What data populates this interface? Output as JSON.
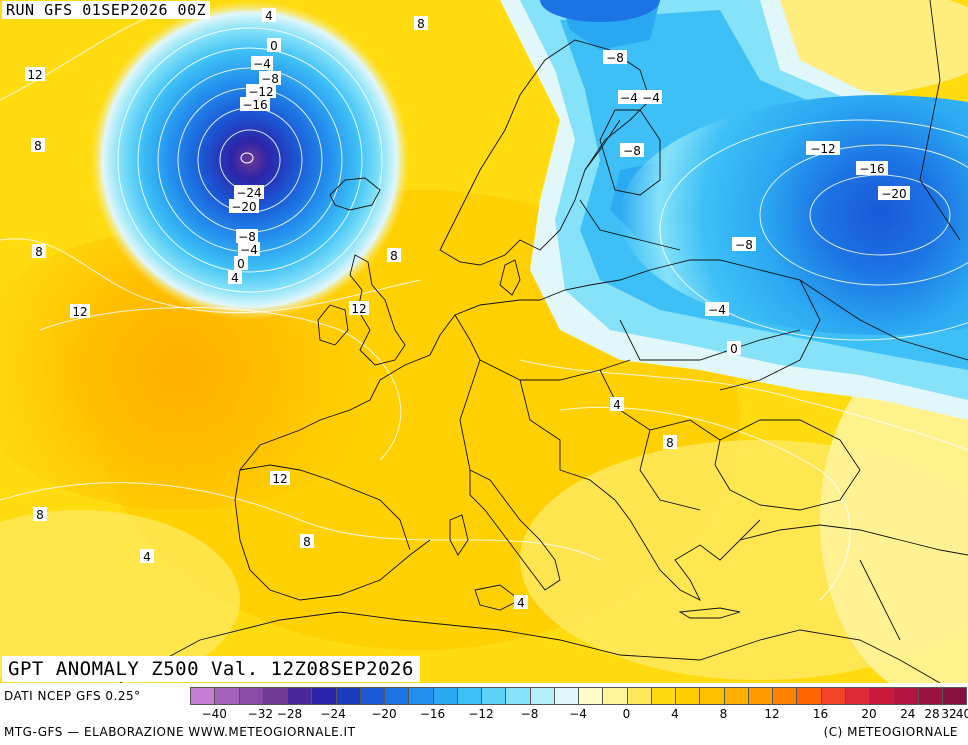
{
  "header": {
    "run": "RUN GFS 01SEP2026 00Z"
  },
  "title": "GPT ANOMALY Z500 Val. 12Z08SEP2026",
  "footer": {
    "source": "DATI NCEP GFS 0.25°",
    "credit_left": "MTG-GFS — ELABORAZIONE WWW.METEOGIORNALE.IT",
    "credit_right": "(C) METEOGIORNALE"
  },
  "legend": {
    "colors": [
      "#c47fd3",
      "#a463bb",
      "#8a4ca4",
      "#6f3a93",
      "#48289a",
      "#2b24a8",
      "#1c3cc0",
      "#1a58d6",
      "#1c74e4",
      "#2390ee",
      "#2ba8f2",
      "#3ec0f6",
      "#5cd2f8",
      "#86e2f8",
      "#b4eef8",
      "#e2f7fa",
      "#fdfbc6",
      "#fff39a",
      "#ffe85a",
      "#ffdb10",
      "#ffcf00",
      "#ffc000",
      "#ffaf00",
      "#ff9a00",
      "#ff8200",
      "#ff6500",
      "#f3442a",
      "#e02a3a",
      "#c8183c",
      "#b11440",
      "#9a1242",
      "#861140"
    ],
    "ticks": [
      "−40",
      "−32",
      "−28",
      "−24",
      "−20",
      "−16",
      "−12",
      "−8",
      "−4",
      "0",
      "4",
      "8",
      "12",
      "16",
      "20",
      "24",
      "28",
      "32",
      "40"
    ]
  },
  "contour_labels": [
    {
      "text": "4"
    },
    {
      "text": "8"
    },
    {
      "text": "12"
    },
    {
      "text": "0"
    },
    {
      "text": "−4"
    },
    {
      "text": "−8"
    },
    {
      "text": "−12"
    },
    {
      "text": "−16"
    },
    {
      "text": "8"
    },
    {
      "text": "−24"
    },
    {
      "text": "−20"
    },
    {
      "text": "−8"
    },
    {
      "text": "−4"
    },
    {
      "text": "0"
    },
    {
      "text": "4"
    },
    {
      "text": "8"
    },
    {
      "text": "8"
    },
    {
      "text": "12"
    },
    {
      "text": "12"
    },
    {
      "text": "−8"
    },
    {
      "text": "−4"
    },
    {
      "text": "−4"
    },
    {
      "text": "−8"
    },
    {
      "text": "−12"
    },
    {
      "text": "−16"
    },
    {
      "text": "−20"
    },
    {
      "text": "−8"
    },
    {
      "text": "−4"
    },
    {
      "text": "0"
    },
    {
      "text": "4"
    },
    {
      "text": "8"
    },
    {
      "text": "12"
    },
    {
      "text": "8"
    },
    {
      "text": "8"
    },
    {
      "text": "4"
    },
    {
      "text": "4"
    }
  ]
}
